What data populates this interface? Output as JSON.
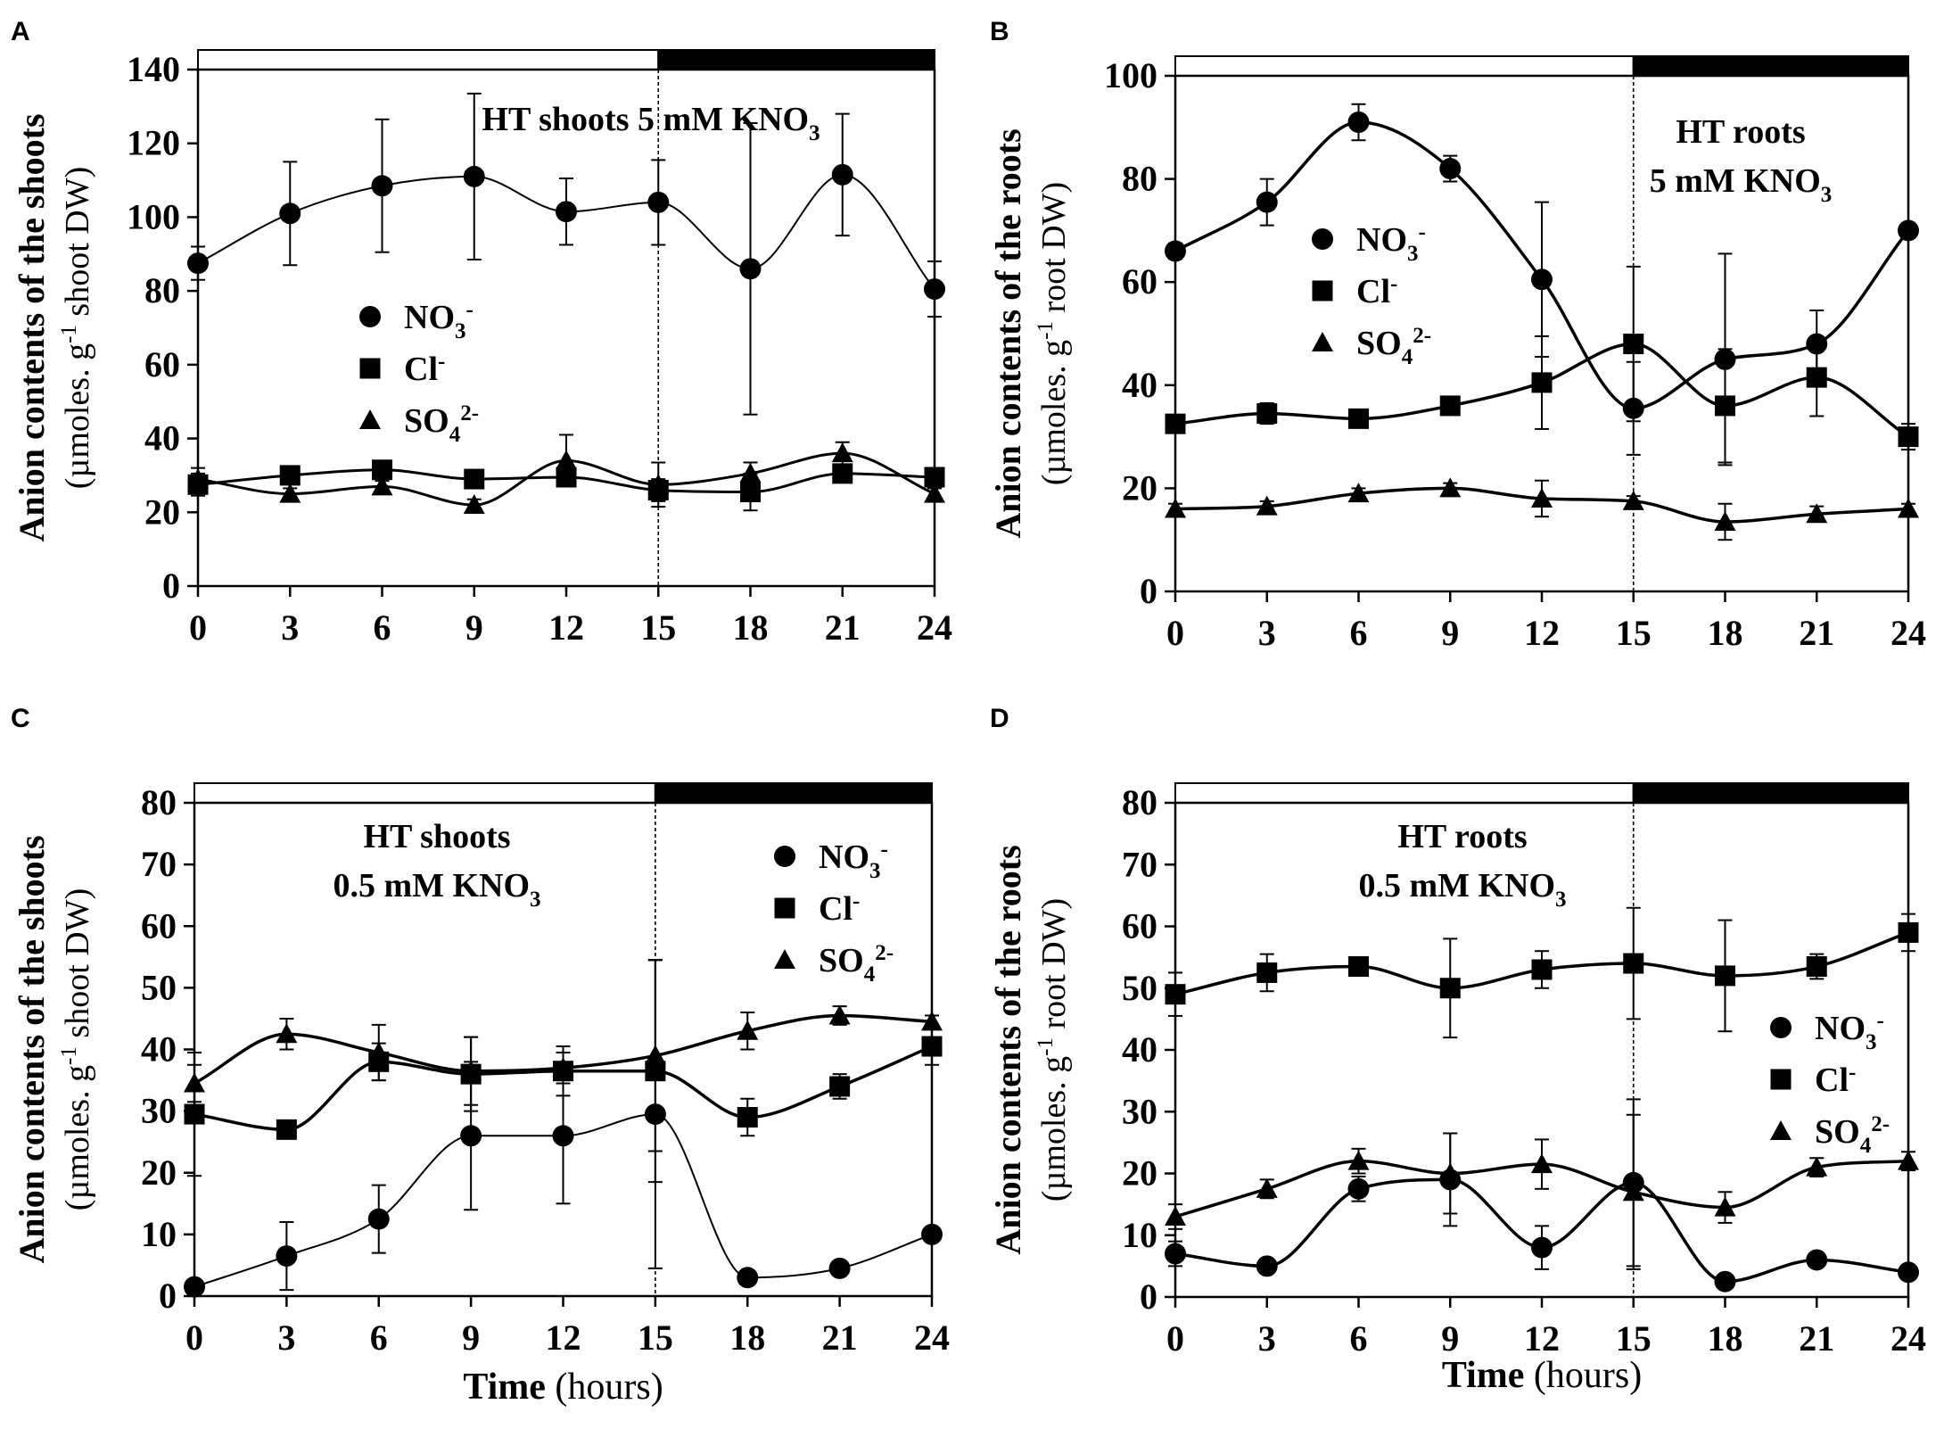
{
  "figure": {
    "x_ticks": [
      0,
      3,
      6,
      9,
      12,
      15,
      18,
      21,
      24
    ],
    "x_label_bold": "Time",
    "x_label_rest": " (hours)",
    "series_names": [
      "NO3-",
      "Cl-",
      "SO42-"
    ],
    "colors": {
      "ink": "#000000",
      "background": "#ffffff"
    }
  },
  "chart_data": [
    {
      "id": "A",
      "type": "line",
      "panel_letter": "A",
      "title_lines": [
        "HT shoots 5 mM KNO3"
      ],
      "ylabel_bold": "Anion contents of the shoots",
      "ylabel_unit": "(µmoles. g-1 shoot DW)",
      "ylim": [
        0,
        140
      ],
      "yticks": [
        0,
        20,
        40,
        60,
        80,
        100,
        120,
        140
      ],
      "xlim": [
        0,
        24
      ],
      "light_period": [
        0,
        15
      ],
      "dark_period": [
        15,
        24
      ],
      "legend_position": "center-left",
      "x": [
        0,
        3,
        6,
        9,
        12,
        15,
        18,
        21,
        24
      ],
      "series": [
        {
          "name": "NO3-",
          "marker": "circle",
          "values": [
            87.5,
            101,
            108.5,
            111,
            101.5,
            104,
            86,
            111.5,
            80.5
          ],
          "errors": [
            4.5,
            14,
            18,
            22.5,
            9,
            11.5,
            39.5,
            16.5,
            7.5
          ]
        },
        {
          "name": "Cl-",
          "marker": "square",
          "values": [
            27.5,
            30,
            31.5,
            29,
            29.5,
            26,
            25.5,
            30.5,
            29.5
          ],
          "errors": [
            3,
            1.5,
            1.5,
            1.5,
            2.5,
            3,
            5,
            2,
            2
          ]
        },
        {
          "name": "SO42-",
          "marker": "triangle",
          "values": [
            29,
            25,
            27,
            22,
            34,
            27.5,
            30.5,
            36,
            25
          ],
          "errors": [
            3,
            1.5,
            1.5,
            1.5,
            7,
            6,
            3,
            3,
            1.5
          ]
        }
      ]
    },
    {
      "id": "B",
      "type": "line",
      "panel_letter": "B",
      "title_lines": [
        "HT roots",
        "5 mM KNO3"
      ],
      "ylabel_bold": "Anion contents of the roots",
      "ylabel_unit": "(µmoles. g-1 root DW)",
      "ylim": [
        0,
        100
      ],
      "yticks": [
        0,
        20,
        40,
        60,
        80,
        100
      ],
      "xlim": [
        0,
        24
      ],
      "light_period": [
        0,
        15
      ],
      "dark_period": [
        15,
        24
      ],
      "legend_position": "upper-left",
      "x": [
        0,
        3,
        6,
        9,
        12,
        15,
        18,
        21,
        24
      ],
      "series": [
        {
          "name": "NO3-",
          "marker": "circle",
          "values": [
            66,
            75.5,
            91,
            82,
            60.5,
            35.5,
            45,
            48,
            70
          ],
          "errors": [
            1.5,
            4.5,
            3.5,
            2.5,
            15,
            9,
            20.5,
            6.5,
            1.5
          ]
        },
        {
          "name": "Cl-",
          "marker": "square",
          "values": [
            32.5,
            34.5,
            33.5,
            36,
            40.5,
            48,
            36,
            41.5,
            30
          ],
          "errors": [
            1.5,
            2,
            1,
            1.5,
            9,
            15,
            11,
            7.5,
            2.5
          ]
        },
        {
          "name": "SO42-",
          "marker": "triangle",
          "values": [
            16,
            16.5,
            19,
            20,
            18,
            17.5,
            13.5,
            15,
            16
          ],
          "errors": [
            1,
            1,
            1,
            1,
            3.5,
            1,
            3.5,
            1.5,
            1
          ]
        }
      ]
    },
    {
      "id": "C",
      "type": "line",
      "panel_letter": "C",
      "title_lines": [
        "HT shoots",
        "0.5 mM KNO3"
      ],
      "ylabel_bold": "Anion contents of the shoots",
      "ylabel_unit": "(µmoles. g-1 shoot DW)",
      "ylim": [
        0,
        80
      ],
      "yticks": [
        0,
        10,
        20,
        30,
        40,
        50,
        60,
        70,
        80
      ],
      "xlim": [
        0,
        24
      ],
      "light_period": [
        0,
        15
      ],
      "dark_period": [
        15,
        24
      ],
      "legend_position": "upper-right",
      "x": [
        0,
        3,
        6,
        9,
        12,
        15,
        18,
        21,
        24
      ],
      "series": [
        {
          "name": "NO3-",
          "marker": "circle",
          "values": [
            1.5,
            6.5,
            12.5,
            26,
            26,
            29.5,
            3,
            4.5,
            10
          ],
          "errors": [
            1,
            5.5,
            5.5,
            12,
            11,
            25,
            1,
            1,
            1
          ]
        },
        {
          "name": "Cl-",
          "marker": "square",
          "values": [
            29.5,
            27,
            38,
            36,
            36.5,
            36.5,
            29,
            34,
            40.5
          ],
          "errors": [
            10,
            1,
            3,
            6,
            4,
            18,
            3,
            2,
            3
          ]
        },
        {
          "name": "SO42-",
          "marker": "triangle",
          "values": [
            34.5,
            42.5,
            39.5,
            36.5,
            37,
            39,
            43,
            45.5,
            44.5
          ],
          "errors": [
            3,
            2.5,
            4.5,
            5.5,
            2.5,
            15.5,
            3,
            1.5,
            1
          ]
        }
      ]
    },
    {
      "id": "D",
      "type": "line",
      "panel_letter": "D",
      "title_lines": [
        "HT roots",
        "0.5 mM KNO3"
      ],
      "ylabel_bold": "Anion contents of the roots",
      "ylabel_unit": "(µmoles. g-1 root DW)",
      "ylim": [
        0,
        80
      ],
      "yticks": [
        0,
        10,
        20,
        30,
        40,
        50,
        60,
        70,
        80
      ],
      "xlim": [
        0,
        24
      ],
      "light_period": [
        0,
        15
      ],
      "dark_period": [
        15,
        24
      ],
      "legend_position": "lower-right",
      "x": [
        0,
        3,
        6,
        9,
        12,
        15,
        18,
        21,
        24
      ],
      "series": [
        {
          "name": "NO3-",
          "marker": "circle",
          "values": [
            7,
            5,
            17.5,
            19,
            8,
            18.5,
            2.5,
            6,
            4
          ],
          "errors": [
            2,
            1,
            2,
            7.5,
            3.5,
            13.5,
            1,
            1,
            1
          ]
        },
        {
          "name": "Cl-",
          "marker": "square",
          "values": [
            49,
            52.5,
            53.5,
            50,
            53,
            54,
            52,
            53.5,
            59
          ],
          "errors": [
            3.5,
            3,
            1.5,
            8,
            3,
            9,
            9,
            2,
            3
          ]
        },
        {
          "name": "SO42-",
          "marker": "triangle",
          "values": [
            13,
            17.5,
            22,
            20,
            21.5,
            17,
            14.5,
            21,
            22
          ],
          "errors": [
            2,
            1.5,
            2,
            6.5,
            4,
            12.5,
            2.5,
            1.5,
            1.5
          ]
        }
      ]
    }
  ]
}
